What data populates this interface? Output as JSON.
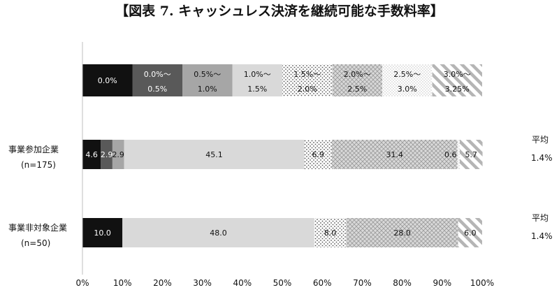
{
  "chart_data": {
    "type": "bar",
    "stacked": true,
    "orientation": "horizontal",
    "title": "【図表 7. キャッシュレス決済を継続可能な手数料率】",
    "xlim": [
      0,
      100
    ],
    "x_ticks": [
      "0%",
      "10%",
      "20%",
      "30%",
      "40%",
      "50%",
      "60%",
      "70%",
      "80%",
      "90%",
      "100%"
    ],
    "grid": false,
    "legend_position": "top",
    "segments": [
      {
        "line1": "0.0%",
        "line2": "",
        "fill": "#111111",
        "pattern": "solid",
        "text_color": "#ffffff"
      },
      {
        "line1": "0.0%～",
        "line2": "0.5%",
        "fill": "#595959",
        "pattern": "solid",
        "text_color": "#ffffff"
      },
      {
        "line1": "0.5%～",
        "line2": "1.0%",
        "fill": "#a6a6a6",
        "pattern": "solid",
        "text_color": "#111111"
      },
      {
        "line1": "1.0%～",
        "line2": "1.5%",
        "fill": "#d9d9d9",
        "pattern": "solid",
        "text_color": "#111111"
      },
      {
        "line1": "1.5%～",
        "line2": "2.0%",
        "fill": "#ffffff",
        "pattern": "dots",
        "text_color": "#111111"
      },
      {
        "line1": "2.0%～",
        "line2": "2.5%",
        "fill": "#d9d9d9",
        "pattern": "cross",
        "text_color": "#111111"
      },
      {
        "line1": "2.5%～",
        "line2": "3.0%",
        "fill": "#ffffff",
        "pattern": "fine-dots",
        "text_color": "#111111"
      },
      {
        "line1": "3.0%～",
        "line2": "3.25%",
        "fill": "#ffffff",
        "pattern": "diagonal",
        "text_color": "#111111"
      }
    ],
    "series": [
      {
        "category": "事業参加企業",
        "n_label": "(n=175)",
        "values": [
          4.6,
          2.9,
          2.9,
          45.1,
          6.9,
          31.4,
          0.6,
          5.7
        ],
        "labels": [
          "4.6",
          "2.9",
          "2.9",
          "45.1",
          "6.9",
          "31.4",
          "0.6",
          "5.7"
        ],
        "avg_title": "平均",
        "avg_value": "1.4%"
      },
      {
        "category": "事業非対象企業",
        "n_label": "(n=50)",
        "values": [
          10.0,
          0.0,
          0.0,
          48.0,
          8.0,
          28.0,
          0.0,
          6.0
        ],
        "labels": [
          "10.0",
          "",
          "",
          "48.0",
          "8.0",
          "28.0",
          "",
          "6.0"
        ],
        "avg_title": "平均",
        "avg_value": "1.4%"
      }
    ]
  }
}
